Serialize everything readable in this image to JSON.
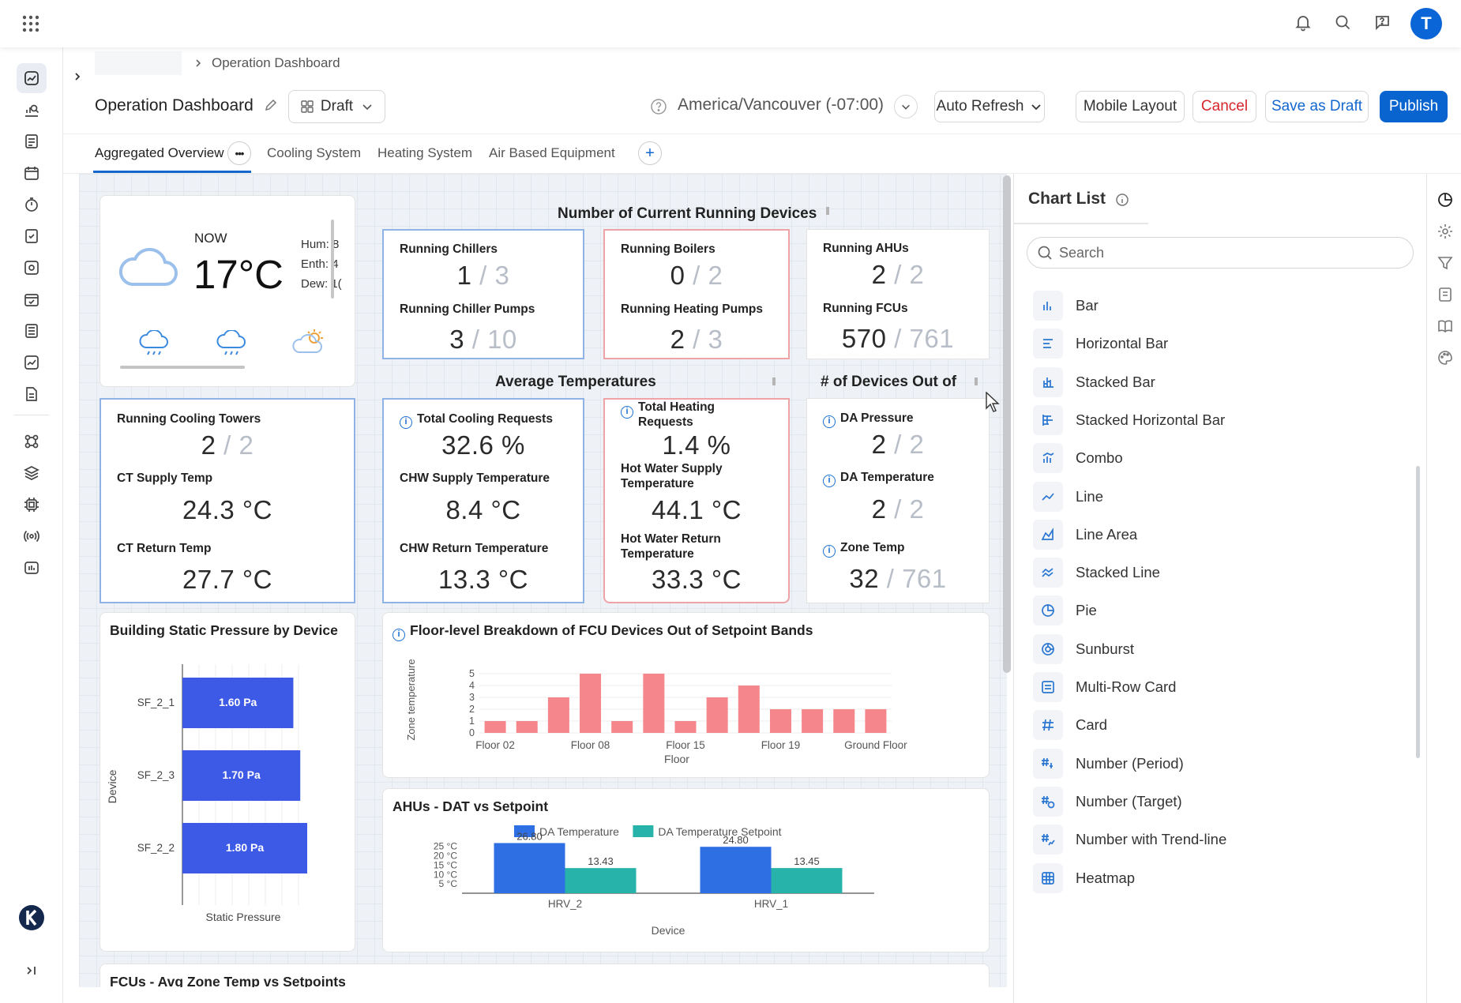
{
  "header": {
    "breadcrumb": "Operation Dashboard",
    "title": "Operation Dashboard",
    "status": "Draft",
    "timezone": "America/Vancouver (-07:00)",
    "auto_refresh": "Auto Refresh",
    "mobile_layout": "Mobile Layout",
    "cancel": "Cancel",
    "save_draft": "Save as Draft",
    "publish": "Publish",
    "avatar_initial": "T"
  },
  "tabs": [
    "Aggregated Overview",
    "Cooling System",
    "Heating System",
    "Air Based Equipment"
  ],
  "weather": {
    "now_label": "NOW",
    "temp": "17°C",
    "hum": "Hum: 8",
    "enth": "Enth: 4",
    "dew": "Dew: 1("
  },
  "running": {
    "title": "Number of Current Running Devices",
    "items": [
      {
        "label": "Running Chillers",
        "value": "1",
        "total": "3"
      },
      {
        "label": "Running Chiller Pumps",
        "value": "3",
        "total": "10"
      },
      {
        "label": "Running Boilers",
        "value": "0",
        "total": "2"
      },
      {
        "label": "Running Heating Pumps",
        "value": "2",
        "total": "3"
      },
      {
        "label": "Running AHUs",
        "value": "2",
        "total": "2"
      },
      {
        "label": "Running FCUs",
        "value": "570",
        "total": "761"
      }
    ]
  },
  "avg_temps_title": "Average Temperatures",
  "out_of_title": "# of Devices Out of",
  "cooling_towers": {
    "running_label": "Running Cooling Towers",
    "running_value": "2",
    "running_total": "2",
    "supply_label": "CT Supply Temp",
    "supply_value": "24.3 °C",
    "return_label": "CT Return Temp",
    "return_value": "27.7 °C"
  },
  "chw": {
    "req_label": "Total Cooling Requests",
    "req_value": "32.6 %",
    "supply_label": "CHW Supply Temperature",
    "supply_value": "8.4 °C",
    "return_label": "CHW Return Temperature",
    "return_value": "13.3 °C"
  },
  "hw": {
    "req_label": "Total Heating Requests",
    "req_value": "1.4 %",
    "supply_label": "Hot Water Supply Temperature",
    "supply_value": "44.1 °C",
    "return_label": "Hot Water Return Temperature",
    "return_value": "33.3 °C"
  },
  "outof": {
    "dap_label": "DA Pressure",
    "dap_value": "2",
    "dap_total": "2",
    "dat_label": "DA Temperature",
    "dat_value": "2",
    "dat_total": "2",
    "zone_label": "Zone Temp",
    "zone_value": "32",
    "zone_total": "761"
  },
  "next_chart_title": "FCUs - Avg Zone Temp vs Setpoints",
  "chart_data": [
    {
      "type": "bar",
      "orientation": "horizontal",
      "title": "Building Static Pressure by Device",
      "xlabel": "Static Pressure",
      "ylabel": "Device",
      "categories": [
        "SF_2_1",
        "SF_2_3",
        "SF_2_2"
      ],
      "values": [
        1.6,
        1.7,
        1.8
      ],
      "data_labels": [
        "1.60 Pa",
        "1.70 Pa",
        "1.80 Pa"
      ],
      "xlim": [
        0,
        1.8
      ],
      "color": "#3d5ae6"
    },
    {
      "type": "bar",
      "title": "Floor-level Breakdown of FCU Devices Out of Setpoint Bands",
      "xlabel": "Floor",
      "ylabel": "Zone temperature",
      "tick_labels": [
        "Floor 02",
        "Floor 08",
        "Floor 15",
        "Floor 19",
        "Ground Floor"
      ],
      "values": [
        1,
        1,
        3,
        5,
        1,
        5,
        1,
        3,
        4,
        2,
        2,
        2,
        2
      ],
      "ylim": [
        0,
        5
      ],
      "yticks": [
        0,
        1,
        2,
        3,
        4,
        5
      ],
      "color": "#f4868c"
    },
    {
      "type": "bar",
      "title": "AHUs - DAT vs Setpoint",
      "xlabel": "Device",
      "categories": [
        "HRV_2",
        "HRV_1"
      ],
      "yticks": [
        "5 °C",
        "10 °C",
        "15 °C",
        "20 °C",
        "25 °C"
      ],
      "ylim": [
        0,
        27
      ],
      "series": [
        {
          "name": "DA Temperature",
          "values": [
            26.8,
            24.8
          ],
          "labels": [
            "26.80",
            "24.80"
          ],
          "color": "#2f6fe4"
        },
        {
          "name": "DA Temperature Setpoint",
          "values": [
            13.43,
            13.45
          ],
          "labels": [
            "13.43",
            "13.45"
          ],
          "color": "#27b3aa"
        }
      ]
    }
  ],
  "chart_list": {
    "title": "Chart List",
    "search_placeholder": "Search",
    "items": [
      "Bar",
      "Horizontal Bar",
      "Stacked Bar",
      "Stacked Horizontal Bar",
      "Combo",
      "Line",
      "Line Area",
      "Stacked Line",
      "Pie",
      "Sunburst",
      "Multi-Row Card",
      "Card",
      "Number (Period)",
      "Number (Target)",
      "Number with Trend-line",
      "Heatmap"
    ]
  }
}
